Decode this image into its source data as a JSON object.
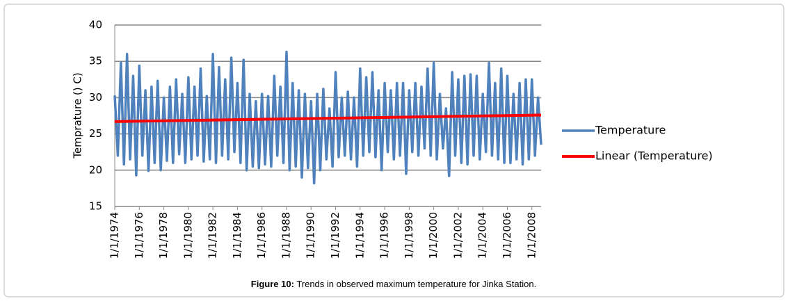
{
  "chart_data": {
    "type": "line",
    "y_label": "Temprature  () C)",
    "caption": {
      "label": "Figure 10:",
      "text": "Trends in observed maximum temperature for Jinka Station."
    },
    "xlim": [
      1974,
      2008.75
    ],
    "xticks": [
      {
        "value": 1974,
        "label": "1/1/1974"
      },
      {
        "value": 1976,
        "label": "1/1/1976"
      },
      {
        "value": 1978,
        "label": "1/1/1978"
      },
      {
        "value": 1980,
        "label": "1/1/1980"
      },
      {
        "value": 1982,
        "label": "1/1/1982"
      },
      {
        "value": 1984,
        "label": "1/1/1984"
      },
      {
        "value": 1986,
        "label": "1/1/1986"
      },
      {
        "value": 1988,
        "label": "1/1/1988"
      },
      {
        "value": 1990,
        "label": "1/1/1990"
      },
      {
        "value": 1992,
        "label": "1/1/1992"
      },
      {
        "value": 1994,
        "label": "1/1/1994"
      },
      {
        "value": 1996,
        "label": "1/1/1996"
      },
      {
        "value": 1998,
        "label": "1/1/1998"
      },
      {
        "value": 2000,
        "label": "1/1/2000"
      },
      {
        "value": 2002,
        "label": "1/1/2002"
      },
      {
        "value": 2004,
        "label": "1/1/2004"
      },
      {
        "value": 2006,
        "label": "1/1/2006"
      },
      {
        "value": 2008,
        "label": "1/1/2008"
      }
    ],
    "ylim": [
      15,
      40
    ],
    "yticks": [
      15,
      20,
      25,
      30,
      35,
      40
    ],
    "grid": true,
    "legend": "right",
    "series": [
      {
        "name": "Temperature",
        "color": "#4f81bd",
        "width": 3.5,
        "x": [
          1974,
          1974.25,
          1974.5,
          1974.75,
          1975,
          1975.25,
          1975.5,
          1975.75,
          1976,
          1976.25,
          1976.5,
          1976.75,
          1977,
          1977.25,
          1977.5,
          1977.75,
          1978,
          1978.25,
          1978.5,
          1978.75,
          1979,
          1979.25,
          1979.5,
          1979.75,
          1980,
          1980.25,
          1980.5,
          1980.75,
          1981,
          1981.25,
          1981.5,
          1981.75,
          1982,
          1982.25,
          1982.5,
          1982.75,
          1983,
          1983.25,
          1983.5,
          1983.75,
          1984,
          1984.25,
          1984.5,
          1984.75,
          1985,
          1985.25,
          1985.5,
          1985.75,
          1986,
          1986.25,
          1986.5,
          1986.75,
          1987,
          1987.25,
          1987.5,
          1987.75,
          1988,
          1988.25,
          1988.5,
          1988.75,
          1989,
          1989.25,
          1989.5,
          1989.75,
          1990,
          1990.25,
          1990.5,
          1990.75,
          1991,
          1991.25,
          1991.5,
          1991.75,
          1992,
          1992.25,
          1992.5,
          1992.75,
          1993,
          1993.25,
          1993.5,
          1993.75,
          1994,
          1994.25,
          1994.5,
          1994.75,
          1995,
          1995.25,
          1995.5,
          1995.75,
          1996,
          1996.25,
          1996.5,
          1996.75,
          1997,
          1997.25,
          1997.5,
          1997.75,
          1998,
          1998.25,
          1998.5,
          1998.75,
          1999,
          1999.25,
          1999.5,
          1999.75,
          2000,
          2000.25,
          2000.5,
          2000.75,
          2001,
          2001.25,
          2001.5,
          2001.75,
          2002,
          2002.25,
          2002.5,
          2002.75,
          2003,
          2003.25,
          2003.5,
          2003.75,
          2004,
          2004.25,
          2004.5,
          2004.75,
          2005,
          2005.25,
          2005.5,
          2005.75,
          2006,
          2006.25,
          2006.5,
          2006.75,
          2007,
          2007.25,
          2007.5,
          2007.75,
          2008,
          2008.25,
          2008.5,
          2008.75
        ],
        "values": [
          30.3,
          22,
          34.8,
          20.8,
          36,
          21.5,
          33,
          19.3,
          34.4,
          22,
          31,
          19.9,
          31.5,
          21,
          32.3,
          20,
          30,
          21.3,
          31.5,
          21,
          32.5,
          22.2,
          30.5,
          21,
          32.8,
          21.5,
          31.5,
          22,
          34,
          21.2,
          30.2,
          21.5,
          36,
          21,
          34.2,
          22,
          32.5,
          21.5,
          35.5,
          22.5,
          32,
          21,
          35.2,
          20,
          30.5,
          20.5,
          29.5,
          20.3,
          30.5,
          20.8,
          30.2,
          20.5,
          33,
          22,
          31.5,
          21,
          36.3,
          20,
          32,
          20.5,
          31,
          19,
          30.5,
          20.3,
          29.5,
          18.2,
          30.5,
          20,
          31.2,
          21.5,
          28.5,
          20.5,
          33.5,
          21.8,
          30,
          22,
          30.8,
          21.5,
          30,
          20.5,
          34,
          22,
          32.8,
          22.5,
          33.5,
          21.8,
          31,
          20,
          32,
          22.5,
          31,
          21.5,
          32,
          22,
          32,
          19.5,
          31,
          22.5,
          32,
          22,
          31.5,
          23,
          34,
          22,
          34.8,
          21.5,
          30.5,
          23,
          28.5,
          19.2,
          33.5,
          22,
          32.5,
          21,
          33,
          20.8,
          33.2,
          22,
          33,
          21.5,
          30.5,
          22.5,
          34.8,
          22,
          32,
          21.5,
          34,
          21,
          33,
          21,
          30.5,
          21.5,
          32,
          20.8,
          32.5,
          21.5,
          32.5,
          22,
          30,
          23.5
        ]
      },
      {
        "name": "Linear (Temperature)",
        "color": "#ff0000",
        "width": 4,
        "x": [
          1974,
          2008.75
        ],
        "values": [
          26.7,
          27.6
        ]
      }
    ]
  }
}
